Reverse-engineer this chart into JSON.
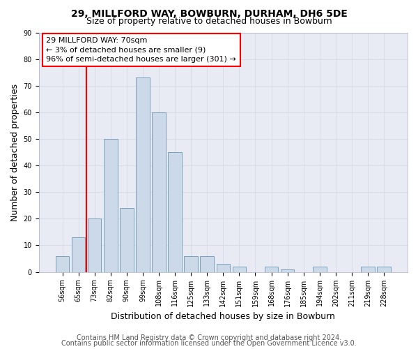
{
  "title": "29, MILLFORD WAY, BOWBURN, DURHAM, DH6 5DE",
  "subtitle": "Size of property relative to detached houses in Bowburn",
  "xlabel": "Distribution of detached houses by size in Bowburn",
  "ylabel": "Number of detached properties",
  "bar_labels": [
    "56sqm",
    "65sqm",
    "73sqm",
    "82sqm",
    "90sqm",
    "99sqm",
    "108sqm",
    "116sqm",
    "125sqm",
    "133sqm",
    "142sqm",
    "151sqm",
    "159sqm",
    "168sqm",
    "176sqm",
    "185sqm",
    "194sqm",
    "202sqm",
    "211sqm",
    "219sqm",
    "228sqm"
  ],
  "bar_values": [
    6,
    13,
    20,
    50,
    24,
    73,
    60,
    45,
    6,
    6,
    3,
    2,
    0,
    2,
    1,
    0,
    2,
    0,
    0,
    2,
    2
  ],
  "bar_color": "#ccd9e8",
  "bar_edge_color": "#7aa0bb",
  "red_line_x": 1.5,
  "annotation_text": "29 MILLFORD WAY: 70sqm\n← 3% of detached houses are smaller (9)\n96% of semi-detached houses are larger (301) →",
  "ylim": [
    0,
    90
  ],
  "yticks": [
    0,
    10,
    20,
    30,
    40,
    50,
    60,
    70,
    80,
    90
  ],
  "grid_color": "#d8dce8",
  "background_color": "#e8eaf4",
  "footer_line1": "Contains HM Land Registry data © Crown copyright and database right 2024.",
  "footer_line2": "Contains public sector information licensed under the Open Government Licence v3.0.",
  "title_fontsize": 10,
  "subtitle_fontsize": 9,
  "axis_label_fontsize": 9,
  "tick_fontsize": 7,
  "footer_fontsize": 7
}
